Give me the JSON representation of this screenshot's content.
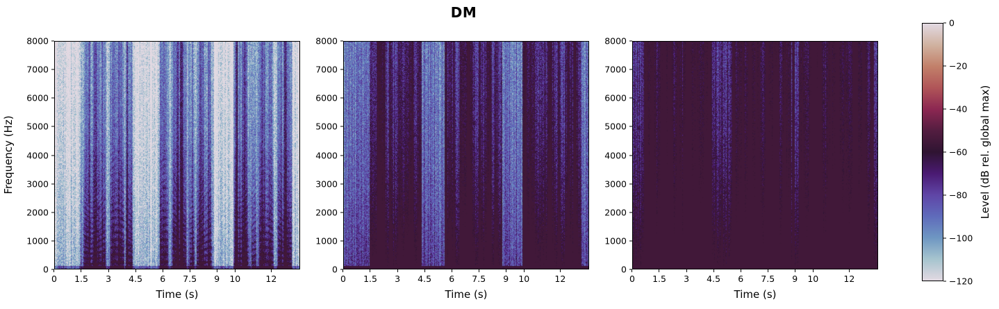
{
  "figure": {
    "title": "DM"
  },
  "chart_data": [
    {
      "type": "heatmap",
      "title": "",
      "subtitle": "spectrogram panel 1 (clean-looking speech, harmonics visible)",
      "xlabel": "Time (s)",
      "ylabel": "Frequency (Hz)",
      "xlim": [
        0,
        13.6
      ],
      "ylim": [
        0,
        8000
      ],
      "xticks": [
        0,
        1.5,
        3,
        4.5,
        6,
        7.5,
        9,
        10,
        12
      ],
      "xtick_labels": [
        "0",
        "1.5",
        "3",
        "4.5",
        "6",
        "7.5",
        "9",
        "10",
        "12"
      ],
      "yticks": [
        0,
        1000,
        2000,
        3000,
        4000,
        5000,
        6000,
        7000,
        8000
      ],
      "ytick_labels": [
        "0",
        "1000",
        "2000",
        "3000",
        "4000",
        "5000",
        "6000",
        "7000",
        "8000"
      ],
      "colormap": "twilight-like (light gray → blue → purple → dark)",
      "background_level_db": -118,
      "speech_segments_s": [
        [
          1.4,
          4.3
        ],
        [
          5.8,
          8.8
        ],
        [
          9.9,
          13.2
        ]
      ],
      "strong_bursts_s": [
        1.9,
        4.0,
        6.8,
        7.0,
        10.1,
        12.8
      ],
      "harmonics_visible": true,
      "noise_floor_strength": 0.1
    },
    {
      "type": "heatmap",
      "title": "",
      "subtitle": "spectrogram panel 2 (noisier, moderate broadband)",
      "xlabel": "Time (s)",
      "ylabel": "",
      "xlim": [
        0,
        13.6
      ],
      "ylim": [
        0,
        8000
      ],
      "xticks": [
        0,
        1.5,
        3,
        4.5,
        6,
        7.5,
        9,
        10,
        12
      ],
      "xtick_labels": [
        "0",
        "1.5",
        "3",
        "4.5",
        "6",
        "7.5",
        "9",
        "10",
        "12"
      ],
      "yticks": [
        0,
        1000,
        2000,
        3000,
        4000,
        5000,
        6000,
        7000,
        8000
      ],
      "ytick_labels": [
        "0",
        "1000",
        "2000",
        "3000",
        "4000",
        "5000",
        "6000",
        "7000",
        "8000"
      ],
      "colormap": "twilight-like",
      "background_level_db": -100,
      "speech_segments_s": [
        [
          1.4,
          4.3
        ],
        [
          5.6,
          8.8
        ],
        [
          9.9,
          13.2
        ]
      ],
      "strong_bursts_s": [
        1.9,
        3.8,
        6.9,
        10.1,
        12.8
      ],
      "harmonics_visible": false,
      "noise_floor_strength": 0.45
    },
    {
      "type": "heatmap",
      "title": "",
      "subtitle": "spectrogram panel 3 (heavy broadband noise, dark low band)",
      "xlabel": "Time (s)",
      "ylabel": "",
      "xlim": [
        0,
        13.6
      ],
      "ylim": [
        0,
        8000
      ],
      "xticks": [
        0,
        1.5,
        3,
        4.5,
        6,
        7.5,
        9,
        10,
        12
      ],
      "xtick_labels": [
        "0",
        "1.5",
        "3",
        "4.5",
        "6",
        "7.5",
        "9",
        "10",
        "12"
      ],
      "yticks": [
        0,
        1000,
        2000,
        3000,
        4000,
        5000,
        6000,
        7000,
        8000
      ],
      "ytick_labels": [
        "0",
        "1000",
        "2000",
        "3000",
        "4000",
        "5000",
        "6000",
        "7000",
        "8000"
      ],
      "colormap": "twilight-like",
      "background_level_db": -90,
      "speech_segments_s": [
        [
          0.6,
          4.3
        ],
        [
          5.5,
          8.8
        ],
        [
          9.2,
          13.4
        ]
      ],
      "strong_bursts_s": [
        1.7,
        4.3,
        6.5,
        8.9,
        10.1,
        12.8
      ],
      "harmonics_visible": false,
      "noise_floor_strength": 0.75
    }
  ],
  "colorbar": {
    "label": "Level (dB rel. global max)",
    "range": [
      -120,
      0
    ],
    "ticks": [
      0,
      -20,
      -40,
      -60,
      -80,
      -100,
      -120
    ],
    "tick_labels": [
      "0",
      "−20",
      "−40",
      "−60",
      "−80",
      "−100",
      "−120"
    ],
    "stops": [
      {
        "v": 0,
        "color": "#e2d9e2"
      },
      {
        "v": -10,
        "color": "#d0b2a0"
      },
      {
        "v": -20,
        "color": "#c2806a"
      },
      {
        "v": -30,
        "color": "#b05558"
      },
      {
        "v": -40,
        "color": "#8c2752"
      },
      {
        "v": -50,
        "color": "#531d40"
      },
      {
        "v": -60,
        "color": "#2f1432"
      },
      {
        "v": -70,
        "color": "#4a1a72"
      },
      {
        "v": -80,
        "color": "#5f45a6"
      },
      {
        "v": -90,
        "color": "#5f6bbb"
      },
      {
        "v": -100,
        "color": "#6e96c2"
      },
      {
        "v": -110,
        "color": "#a6c4ce"
      },
      {
        "v": -120,
        "color": "#e2d9e2"
      }
    ]
  }
}
